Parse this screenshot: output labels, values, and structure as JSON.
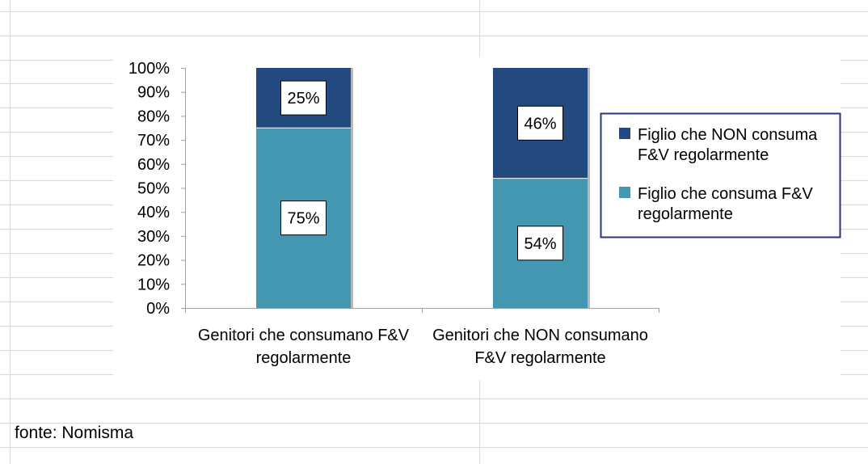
{
  "chart_data": {
    "type": "bar",
    "stacked": true,
    "percent": true,
    "categories": [
      [
        "Genitori che consumano F&V",
        "regolarmente"
      ],
      [
        "Genitori che NON consumano",
        "F&V regolarmente"
      ]
    ],
    "series": [
      {
        "name": "Figlio che consuma F&V regolarmente",
        "legend_lines": [
          "Figlio che consuma F&V",
          "regolarmente"
        ],
        "color": "#4497b0",
        "values": [
          75,
          54
        ]
      },
      {
        "name": "Figlio che NON consuma F&V regolarmente",
        "legend_lines": [
          "Figlio che NON consuma",
          "F&V regolarmente"
        ],
        "color": "#234a7f",
        "values": [
          25,
          46
        ]
      }
    ],
    "ylim": [
      0,
      100
    ],
    "yticks": [
      "0%",
      "10%",
      "20%",
      "30%",
      "40%",
      "50%",
      "60%",
      "70%",
      "80%",
      "90%",
      "100%"
    ],
    "data_label_suffix": "%",
    "legend": "right",
    "grid": false
  },
  "source_note": "fonte: Nomisma",
  "colors": {
    "sheet_gridline": "#d9d9d9",
    "axis": "#a0a0a0",
    "legend_border": "#27337f",
    "bar_shadow": "#b8b8b8"
  }
}
